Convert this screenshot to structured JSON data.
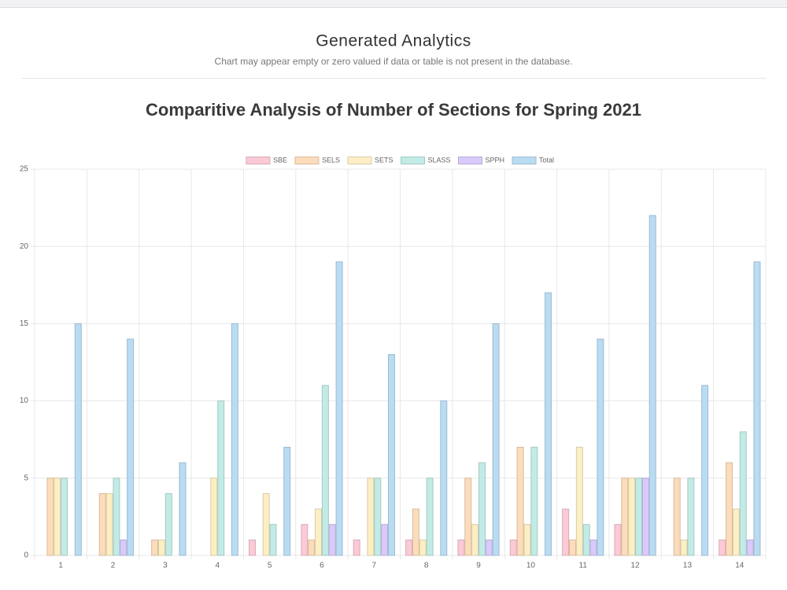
{
  "header": {
    "title": "Generated Analytics",
    "subtitle": "Chart may appear empty or zero valued if data or table is not present in the database."
  },
  "chart_data": {
    "type": "bar",
    "title": "Comparitive Analysis of Number of Sections for Spring 2021",
    "categories": [
      "1",
      "2",
      "3",
      "4",
      "5",
      "6",
      "7",
      "8",
      "9",
      "10",
      "11",
      "12",
      "13",
      "14"
    ],
    "series": [
      {
        "name": "SBE",
        "color": "#fbcad6",
        "values": [
          0,
          0,
          0,
          0,
          1,
          2,
          1,
          1,
          1,
          1,
          3,
          2,
          0,
          1
        ]
      },
      {
        "name": "SELS",
        "color": "#fcdcba",
        "values": [
          5,
          4,
          1,
          0,
          0,
          1,
          0,
          3,
          5,
          7,
          1,
          5,
          5,
          6
        ]
      },
      {
        "name": "SETS",
        "color": "#fdefc4",
        "values": [
          5,
          4,
          1,
          5,
          4,
          3,
          5,
          1,
          2,
          2,
          7,
          5,
          1,
          3
        ]
      },
      {
        "name": "SLASS",
        "color": "#c2ebe6",
        "values": [
          5,
          5,
          4,
          10,
          2,
          11,
          5,
          5,
          6,
          7,
          2,
          5,
          5,
          8
        ]
      },
      {
        "name": "SPPH",
        "color": "#d9cafb",
        "values": [
          0,
          1,
          0,
          0,
          0,
          2,
          2,
          0,
          1,
          0,
          1,
          5,
          0,
          1
        ]
      },
      {
        "name": "Total",
        "color": "#b9dcf3",
        "values": [
          15,
          14,
          6,
          15,
          7,
          19,
          13,
          10,
          15,
          17,
          14,
          22,
          11,
          19
        ]
      }
    ],
    "ylim": [
      0,
      25
    ],
    "yticks": [
      0,
      5,
      10,
      15,
      20,
      25
    ],
    "grid": true,
    "legend": "top"
  }
}
